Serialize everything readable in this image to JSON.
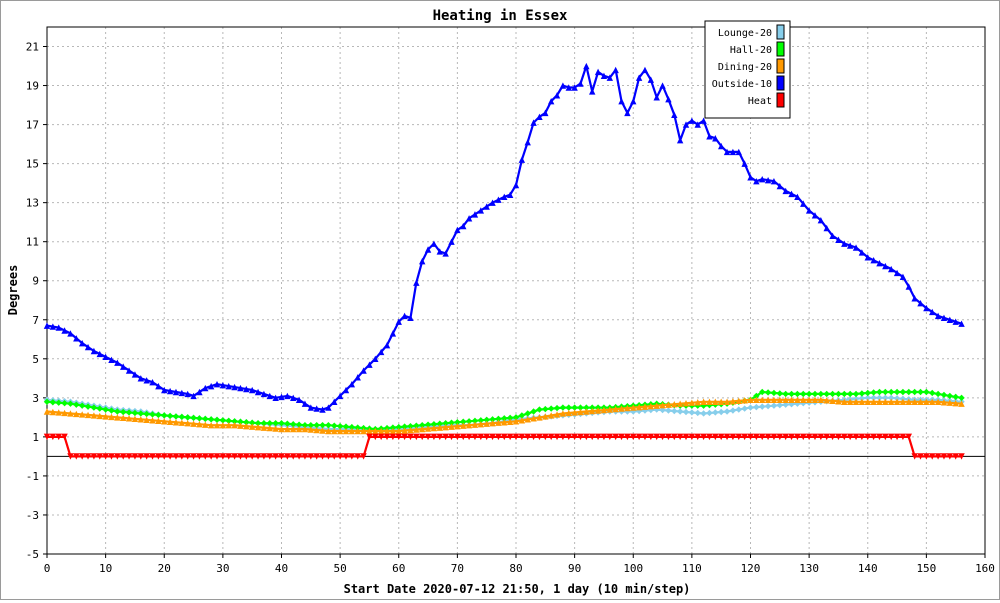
{
  "chart_data": {
    "type": "line",
    "title": "Heating in Essex",
    "xlabel": "Start Date 2020-07-12 21:50, 1 day (10 min/step)",
    "ylabel": "Degrees",
    "xlim": [
      0,
      160
    ],
    "ylim": [
      -5,
      22
    ],
    "x_ticks": [
      0,
      10,
      20,
      30,
      40,
      50,
      60,
      70,
      80,
      90,
      100,
      110,
      120,
      130,
      140,
      150,
      160
    ],
    "y_ticks": [
      -5,
      -3,
      -1,
      1,
      3,
      5,
      7,
      9,
      11,
      13,
      15,
      17,
      19,
      21
    ],
    "grid": true,
    "legend_position": "top-right",
    "zero_line": 0,
    "series": [
      {
        "name": "Lounge-20",
        "color": "#87ceeb",
        "marker": "diamond",
        "x": [
          0,
          4,
          8,
          12,
          16,
          20,
          24,
          28,
          32,
          36,
          40,
          44,
          48,
          52,
          56,
          60,
          64,
          68,
          72,
          76,
          80,
          84,
          88,
          92,
          96,
          100,
          104,
          108,
          112,
          116,
          120,
          124,
          128,
          132,
          136,
          140,
          144,
          148,
          152,
          156
        ],
        "y": [
          2.9,
          2.8,
          2.6,
          2.4,
          2.3,
          2.1,
          2.0,
          1.9,
          1.8,
          1.7,
          1.6,
          1.5,
          1.4,
          1.4,
          1.3,
          1.4,
          1.5,
          1.6,
          1.6,
          1.7,
          1.9,
          2.0,
          2.1,
          2.2,
          2.3,
          2.3,
          2.4,
          2.3,
          2.2,
          2.3,
          2.5,
          2.6,
          2.7,
          2.8,
          2.9,
          3.0,
          3.0,
          2.9,
          2.9,
          2.8
        ]
      },
      {
        "name": "Hall-20",
        "color": "#00ff00",
        "marker": "diamond",
        "x": [
          0,
          4,
          8,
          12,
          16,
          20,
          24,
          28,
          32,
          36,
          40,
          44,
          48,
          52,
          56,
          60,
          64,
          68,
          72,
          76,
          80,
          84,
          88,
          92,
          96,
          100,
          104,
          108,
          112,
          116,
          120,
          122,
          126,
          130,
          134,
          138,
          142,
          146,
          150,
          154,
          156
        ],
        "y": [
          2.8,
          2.7,
          2.5,
          2.3,
          2.2,
          2.1,
          2.0,
          1.9,
          1.8,
          1.7,
          1.7,
          1.6,
          1.6,
          1.5,
          1.4,
          1.5,
          1.6,
          1.7,
          1.8,
          1.9,
          2.0,
          2.4,
          2.5,
          2.5,
          2.5,
          2.6,
          2.7,
          2.6,
          2.6,
          2.7,
          2.9,
          3.3,
          3.2,
          3.2,
          3.2,
          3.2,
          3.3,
          3.3,
          3.3,
          3.1,
          3.0
        ]
      },
      {
        "name": "Dining-20",
        "color": "#ff9900",
        "marker": "triangle-up",
        "x": [
          0,
          4,
          8,
          12,
          16,
          20,
          24,
          28,
          32,
          36,
          40,
          44,
          48,
          52,
          56,
          60,
          64,
          68,
          72,
          76,
          80,
          84,
          88,
          92,
          96,
          100,
          104,
          108,
          112,
          116,
          120,
          124,
          128,
          132,
          136,
          140,
          144,
          148,
          152,
          156
        ],
        "y": [
          2.3,
          2.2,
          2.1,
          2.0,
          1.9,
          1.8,
          1.7,
          1.6,
          1.6,
          1.5,
          1.4,
          1.4,
          1.3,
          1.3,
          1.3,
          1.3,
          1.4,
          1.5,
          1.6,
          1.7,
          1.8,
          2.0,
          2.2,
          2.3,
          2.4,
          2.5,
          2.6,
          2.7,
          2.8,
          2.8,
          2.9,
          2.9,
          2.9,
          2.9,
          2.8,
          2.8,
          2.8,
          2.8,
          2.8,
          2.7
        ]
      },
      {
        "name": "Outside-10",
        "color": "#0000ff",
        "marker": "triangle-up",
        "x": [
          0,
          2,
          4,
          6,
          8,
          10,
          12,
          14,
          16,
          18,
          20,
          22,
          24,
          25,
          27,
          29,
          31,
          33,
          35,
          37,
          39,
          41,
          43,
          45,
          47,
          48,
          50,
          52,
          54,
          56,
          58,
          59,
          60,
          61,
          62,
          63,
          64,
          65,
          66,
          67,
          68,
          69,
          70,
          71,
          72,
          74,
          76,
          78,
          79,
          80,
          81,
          82,
          83,
          84,
          85,
          86,
          87,
          88,
          89,
          90,
          91,
          92,
          93,
          94,
          95,
          96,
          97,
          98,
          99,
          100,
          101,
          102,
          103,
          104,
          105,
          106,
          107,
          108,
          109,
          110,
          111,
          112,
          113,
          114,
          115,
          116,
          117,
          118,
          119,
          120,
          121,
          122,
          124,
          126,
          128,
          130,
          132,
          134,
          136,
          138,
          140,
          142,
          144,
          146,
          147,
          148,
          150,
          152,
          154,
          156
        ],
        "y": [
          6.7,
          6.6,
          6.3,
          5.8,
          5.4,
          5.1,
          4.8,
          4.4,
          4.0,
          3.8,
          3.4,
          3.3,
          3.2,
          3.1,
          3.5,
          3.7,
          3.6,
          3.5,
          3.4,
          3.2,
          3.0,
          3.1,
          2.9,
          2.5,
          2.4,
          2.5,
          3.1,
          3.7,
          4.4,
          5.0,
          5.7,
          6.3,
          6.9,
          7.2,
          7.1,
          8.9,
          10.0,
          10.6,
          10.9,
          10.5,
          10.4,
          11.0,
          11.6,
          11.8,
          12.2,
          12.6,
          13.0,
          13.3,
          13.4,
          13.9,
          15.2,
          16.1,
          17.1,
          17.4,
          17.6,
          18.2,
          18.5,
          19.0,
          18.9,
          18.9,
          19.1,
          20.0,
          18.7,
          19.7,
          19.5,
          19.4,
          19.8,
          18.2,
          17.6,
          18.2,
          19.4,
          19.8,
          19.3,
          18.4,
          19.0,
          18.3,
          17.5,
          16.2,
          17.0,
          17.2,
          17.0,
          17.2,
          16.4,
          16.3,
          15.9,
          15.6,
          15.6,
          15.6,
          15.0,
          14.3,
          14.1,
          14.2,
          14.1,
          13.6,
          13.3,
          12.6,
          12.1,
          11.3,
          10.9,
          10.7,
          10.2,
          9.9,
          9.6,
          9.2,
          8.7,
          8.1,
          7.6,
          7.2,
          7.0,
          6.8
        ]
      },
      {
        "name": "Heat",
        "color": "#ff0000",
        "marker": "triangle-down",
        "x": [
          0,
          3,
          4,
          54,
          55,
          147,
          148,
          156
        ],
        "y": [
          1,
          1,
          0,
          0,
          1,
          1,
          0,
          0
        ]
      }
    ]
  }
}
